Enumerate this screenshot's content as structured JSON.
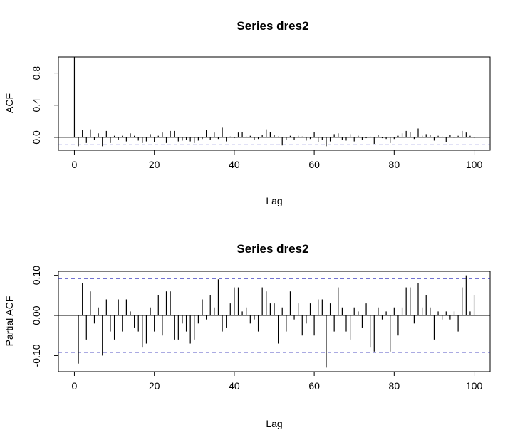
{
  "chart_data": [
    {
      "type": "bar",
      "title": "Series  dres2",
      "xlabel": "Lag",
      "ylabel": "ACF",
      "xlim": [
        -4,
        104
      ],
      "ylim": [
        -0.16,
        1.0
      ],
      "x_ticks": [
        0,
        20,
        40,
        60,
        80,
        100
      ],
      "x_tick_labels": [
        "0",
        "20",
        "40",
        "60",
        "80",
        "100"
      ],
      "y_ticks": [
        0.0,
        0.4,
        0.8
      ],
      "y_tick_labels": [
        "0.0",
        "0.4",
        "0.8"
      ],
      "confidence_band": [
        0.092,
        -0.092
      ],
      "zero_line": true,
      "grid": false,
      "x": [
        0,
        1,
        2,
        3,
        4,
        5,
        6,
        7,
        8,
        9,
        10,
        11,
        12,
        13,
        14,
        15,
        16,
        17,
        18,
        19,
        20,
        21,
        22,
        23,
        24,
        25,
        26,
        27,
        28,
        29,
        30,
        31,
        32,
        33,
        34,
        35,
        36,
        37,
        38,
        39,
        40,
        41,
        42,
        43,
        44,
        45,
        46,
        47,
        48,
        49,
        50,
        51,
        52,
        53,
        54,
        55,
        56,
        57,
        58,
        59,
        60,
        61,
        62,
        63,
        64,
        65,
        66,
        67,
        68,
        69,
        70,
        71,
        72,
        73,
        74,
        75,
        76,
        77,
        78,
        79,
        80,
        81,
        82,
        83,
        84,
        85,
        86,
        87,
        88,
        89,
        90,
        91,
        92,
        93,
        94,
        95,
        96,
        97,
        98,
        99,
        100
      ],
      "values": [
        1.0,
        -0.11,
        0.09,
        -0.07,
        0.1,
        -0.03,
        0.05,
        -0.11,
        0.08,
        -0.07,
        0.02,
        -0.03,
        0.02,
        -0.05,
        0.05,
        0.02,
        -0.04,
        -0.07,
        -0.05,
        0.04,
        -0.06,
        0.02,
        0.06,
        -0.07,
        0.08,
        0.08,
        -0.05,
        -0.04,
        -0.03,
        -0.05,
        -0.07,
        -0.04,
        -0.02,
        0.09,
        -0.03,
        0.06,
        -0.02,
        0.12,
        -0.05,
        0.01,
        -0.01,
        0.06,
        0.07,
        0.01,
        0.02,
        -0.03,
        -0.02,
        0.03,
        0.1,
        0.07,
        0.03,
        0.01,
        -0.1,
        -0.03,
        0.02,
        -0.03,
        0.02,
        0.01,
        -0.04,
        -0.02,
        0.07,
        -0.06,
        -0.03,
        -0.11,
        -0.05,
        0.04,
        0.05,
        -0.03,
        -0.04,
        0.04,
        -0.05,
        0.02,
        -0.03,
        -0.01,
        0.01,
        -0.08,
        0.03,
        -0.01,
        -0.02,
        -0.07,
        -0.02,
        0.02,
        0.05,
        0.08,
        0.07,
        -0.02,
        0.11,
        0.02,
        0.04,
        0.03,
        -0.04,
        0.02,
        0.01,
        -0.06,
        0.03,
        -0.01,
        0.02,
        0.08,
        0.06,
        0.02,
        -0.01
      ]
    },
    {
      "type": "bar",
      "title": "Series  dres2",
      "xlabel": "Lag",
      "ylabel": "Partial ACF",
      "xlim": [
        -4,
        104
      ],
      "ylim": [
        -0.14,
        0.11
      ],
      "x_ticks": [
        0,
        20,
        40,
        60,
        80,
        100
      ],
      "x_tick_labels": [
        "0",
        "20",
        "40",
        "60",
        "80",
        "100"
      ],
      "y_ticks": [
        -0.1,
        0.0,
        0.1
      ],
      "y_tick_labels": [
        "-0.10",
        "0.00",
        "0.10"
      ],
      "confidence_band": [
        0.092,
        -0.092
      ],
      "zero_line": true,
      "grid": false,
      "x": [
        1,
        2,
        3,
        4,
        5,
        6,
        7,
        8,
        9,
        10,
        11,
        12,
        13,
        14,
        15,
        16,
        17,
        18,
        19,
        20,
        21,
        22,
        23,
        24,
        25,
        26,
        27,
        28,
        29,
        30,
        31,
        32,
        33,
        34,
        35,
        36,
        37,
        38,
        39,
        40,
        41,
        42,
        43,
        44,
        45,
        46,
        47,
        48,
        49,
        50,
        51,
        52,
        53,
        54,
        55,
        56,
        57,
        58,
        59,
        60,
        61,
        62,
        63,
        64,
        65,
        66,
        67,
        68,
        69,
        70,
        71,
        72,
        73,
        74,
        75,
        76,
        77,
        78,
        79,
        80,
        81,
        82,
        83,
        84,
        85,
        86,
        87,
        88,
        89,
        90,
        91,
        92,
        93,
        94,
        95,
        96,
        97,
        98,
        99,
        100
      ],
      "values": [
        -0.12,
        0.08,
        -0.06,
        0.06,
        -0.02,
        0.02,
        -0.1,
        0.04,
        -0.04,
        -0.06,
        0.04,
        -0.04,
        0.04,
        0.01,
        -0.03,
        -0.04,
        -0.08,
        -0.07,
        0.02,
        -0.04,
        0.05,
        -0.05,
        0.06,
        0.06,
        -0.06,
        -0.06,
        -0.02,
        -0.04,
        -0.07,
        -0.06,
        -0.02,
        0.04,
        -0.01,
        0.05,
        0.02,
        0.09,
        -0.04,
        -0.03,
        0.03,
        0.07,
        0.07,
        0.01,
        0.02,
        -0.02,
        -0.01,
        -0.04,
        0.07,
        0.06,
        0.03,
        0.03,
        -0.07,
        0.02,
        -0.04,
        0.06,
        -0.01,
        0.03,
        -0.05,
        -0.02,
        0.03,
        -0.05,
        0.04,
        0.04,
        -0.13,
        0.03,
        -0.04,
        0.07,
        0.02,
        -0.04,
        -0.06,
        0.02,
        0.01,
        -0.03,
        0.03,
        -0.08,
        -0.09,
        0.02,
        -0.01,
        0.01,
        -0.09,
        0.02,
        -0.05,
        0.02,
        0.07,
        0.07,
        -0.02,
        0.08,
        0.02,
        0.05,
        0.02,
        -0.06,
        0.01,
        -0.01,
        0.01,
        -0.01,
        0.01,
        -0.04,
        0.07,
        0.1,
        0.01,
        0.05
      ]
    }
  ]
}
